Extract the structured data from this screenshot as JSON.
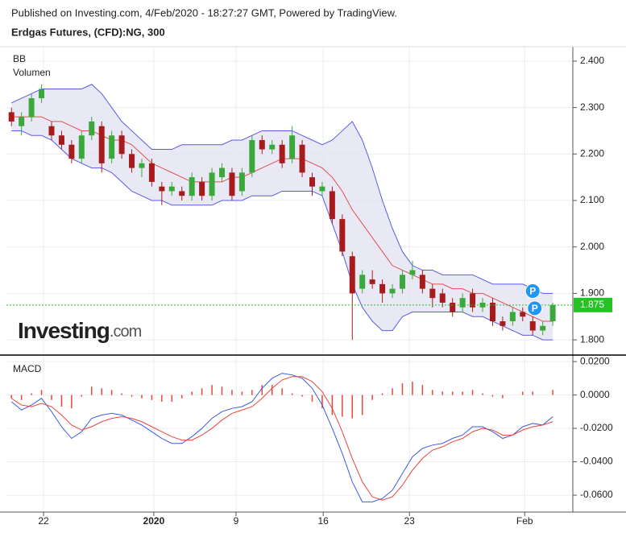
{
  "header": {
    "published": "Published on Investing.com, 4/Feb/2020 - 18:27:27 GMT, Powered by TradingView.",
    "instrument": "Erdgas Futures, (CFD):NG, 300"
  },
  "logo": {
    "brand": "Investing",
    "suffix": ".com"
  },
  "chart_data": [
    {
      "type": "candlestick",
      "title": "BB",
      "subtitle": "Volumen",
      "up_color": "#3aa83a",
      "down_color": "#a61c1c",
      "band_color": "#5a5ae6",
      "band_fill": "#e3e3f3",
      "middle_color": "#e25050",
      "ohlc": [
        [
          2.29,
          2.3,
          2.26,
          2.27
        ],
        [
          2.26,
          2.29,
          2.24,
          2.28
        ],
        [
          2.28,
          2.33,
          2.27,
          2.32
        ],
        [
          2.32,
          2.35,
          2.31,
          2.34
        ],
        [
          2.26,
          2.27,
          2.23,
          2.24
        ],
        [
          2.24,
          2.25,
          2.21,
          2.22
        ],
        [
          2.22,
          2.23,
          2.18,
          2.19
        ],
        [
          2.19,
          2.25,
          2.18,
          2.24
        ],
        [
          2.24,
          2.28,
          2.23,
          2.27
        ],
        [
          2.26,
          2.27,
          2.16,
          2.18
        ],
        [
          2.19,
          2.25,
          2.18,
          2.24
        ],
        [
          2.24,
          2.25,
          2.19,
          2.2
        ],
        [
          2.2,
          2.21,
          2.16,
          2.17
        ],
        [
          2.17,
          2.19,
          2.15,
          2.18
        ],
        [
          2.18,
          2.19,
          2.13,
          2.14
        ],
        [
          2.13,
          2.14,
          2.09,
          2.12
        ],
        [
          2.12,
          2.14,
          2.11,
          2.13
        ],
        [
          2.12,
          2.13,
          2.1,
          2.11
        ],
        [
          2.11,
          2.16,
          2.1,
          2.15
        ],
        [
          2.14,
          2.15,
          2.1,
          2.11
        ],
        [
          2.11,
          2.17,
          2.1,
          2.16
        ],
        [
          2.15,
          2.18,
          2.14,
          2.17
        ],
        [
          2.16,
          2.17,
          2.1,
          2.11
        ],
        [
          2.12,
          2.17,
          2.11,
          2.16
        ],
        [
          2.16,
          2.24,
          2.15,
          2.23
        ],
        [
          2.23,
          2.24,
          2.2,
          2.21
        ],
        [
          2.21,
          2.23,
          2.2,
          2.22
        ],
        [
          2.22,
          2.23,
          2.17,
          2.18
        ],
        [
          2.19,
          2.26,
          2.18,
          2.24
        ],
        [
          2.22,
          2.23,
          2.15,
          2.16
        ],
        [
          2.15,
          2.16,
          2.11,
          2.13
        ],
        [
          2.12,
          2.14,
          2.11,
          2.13
        ],
        [
          2.12,
          2.13,
          2.05,
          2.06
        ],
        [
          2.06,
          2.07,
          1.98,
          1.99
        ],
        [
          1.98,
          1.99,
          1.8,
          1.9
        ],
        [
          1.91,
          1.95,
          1.9,
          1.94
        ],
        [
          1.93,
          1.95,
          1.91,
          1.92
        ],
        [
          1.92,
          1.93,
          1.88,
          1.9
        ],
        [
          1.9,
          1.92,
          1.89,
          1.91
        ],
        [
          1.91,
          1.95,
          1.9,
          1.94
        ],
        [
          1.94,
          1.97,
          1.93,
          1.95
        ],
        [
          1.94,
          1.95,
          1.9,
          1.91
        ],
        [
          1.91,
          1.92,
          1.87,
          1.89
        ],
        [
          1.9,
          1.91,
          1.87,
          1.88
        ],
        [
          1.88,
          1.89,
          1.85,
          1.86
        ],
        [
          1.87,
          1.9,
          1.86,
          1.89
        ],
        [
          1.9,
          1.91,
          1.86,
          1.87
        ],
        [
          1.87,
          1.89,
          1.86,
          1.88
        ],
        [
          1.88,
          1.89,
          1.83,
          1.84
        ],
        [
          1.84,
          1.85,
          1.82,
          1.83
        ],
        [
          1.84,
          1.87,
          1.83,
          1.86
        ],
        [
          1.86,
          1.87,
          1.84,
          1.85
        ],
        [
          1.84,
          1.85,
          1.81,
          1.82
        ],
        [
          1.82,
          1.84,
          1.81,
          1.83
        ],
        [
          1.84,
          1.88,
          1.83,
          1.875
        ]
      ],
      "bands": {
        "upper": [
          2.31,
          2.32,
          2.33,
          2.34,
          2.34,
          2.34,
          2.34,
          2.34,
          2.35,
          2.33,
          2.3,
          2.27,
          2.25,
          2.23,
          2.21,
          2.21,
          2.21,
          2.22,
          2.22,
          2.22,
          2.22,
          2.22,
          2.23,
          2.23,
          2.24,
          2.25,
          2.25,
          2.25,
          2.25,
          2.24,
          2.23,
          2.22,
          2.23,
          2.25,
          2.27,
          2.23,
          2.17,
          2.1,
          2.04,
          1.99,
          1.96,
          1.95,
          1.95,
          1.94,
          1.94,
          1.94,
          1.94,
          1.93,
          1.92,
          1.92,
          1.92,
          1.92,
          1.91,
          1.9,
          1.9
        ],
        "middle": [
          2.28,
          2.28,
          2.28,
          2.28,
          2.27,
          2.27,
          2.26,
          2.25,
          2.25,
          2.24,
          2.23,
          2.23,
          2.22,
          2.2,
          2.18,
          2.17,
          2.16,
          2.15,
          2.14,
          2.14,
          2.14,
          2.14,
          2.15,
          2.15,
          2.16,
          2.17,
          2.18,
          2.19,
          2.19,
          2.19,
          2.18,
          2.17,
          2.15,
          2.12,
          2.08,
          2.05,
          2.02,
          1.99,
          1.96,
          1.95,
          1.94,
          1.93,
          1.92,
          1.92,
          1.91,
          1.91,
          1.9,
          1.9,
          1.89,
          1.88,
          1.87,
          1.86,
          1.85,
          1.84,
          1.84
        ],
        "lower": [
          2.25,
          2.25,
          2.24,
          2.24,
          2.23,
          2.21,
          2.19,
          2.18,
          2.17,
          2.17,
          2.16,
          2.14,
          2.12,
          2.11,
          2.1,
          2.1,
          2.09,
          2.09,
          2.09,
          2.09,
          2.09,
          2.1,
          2.1,
          2.1,
          2.11,
          2.11,
          2.11,
          2.12,
          2.12,
          2.12,
          2.12,
          2.11,
          2.05,
          1.99,
          1.92,
          1.87,
          1.84,
          1.82,
          1.82,
          1.85,
          1.86,
          1.86,
          1.86,
          1.86,
          1.86,
          1.86,
          1.85,
          1.85,
          1.84,
          1.83,
          1.82,
          1.81,
          1.81,
          1.8,
          1.8
        ]
      },
      "last_price": 1.875,
      "last_price_color": "#22c322",
      "markers": [
        {
          "label": "P",
          "x": 52,
          "y": 1.905
        },
        {
          "label": "P",
          "x": 52.2,
          "y": 1.868
        }
      ],
      "marker_color": "#2196f3",
      "ylim": [
        1.769,
        2.431
      ],
      "yticks": [
        {
          "value": 2.4,
          "label": "2.400"
        },
        {
          "value": 2.3,
          "label": "2.300"
        },
        {
          "value": 2.2,
          "label": "2.200"
        },
        {
          "value": 2.1,
          "label": "2.100"
        },
        {
          "value": 2.0,
          "label": "2.000"
        },
        {
          "value": 1.9,
          "label": "1.900"
        },
        {
          "value": 1.8,
          "label": "1.800"
        }
      ],
      "grid": true
    },
    {
      "type": "line",
      "title": "MACD",
      "series": [
        {
          "color": "#3b5be0",
          "values": [
            -0.004,
            -0.009,
            -0.006,
            -0.002,
            -0.01,
            -0.019,
            -0.026,
            -0.022,
            -0.014,
            -0.012,
            -0.011,
            -0.012,
            -0.015,
            -0.018,
            -0.022,
            -0.026,
            -0.029,
            -0.029,
            -0.025,
            -0.02,
            -0.014,
            -0.01,
            -0.008,
            -0.007,
            -0.004,
            0.004,
            0.01,
            0.013,
            0.012,
            0.01,
            0.004,
            -0.006,
            -0.02,
            -0.035,
            -0.052,
            -0.064,
            -0.064,
            -0.062,
            -0.057,
            -0.047,
            -0.037,
            -0.032,
            -0.03,
            -0.029,
            -0.026,
            -0.024,
            -0.019,
            -0.019,
            -0.022,
            -0.026,
            -0.024,
            -0.019,
            -0.017,
            -0.018,
            -0.013
          ]
        },
        {
          "color": "#e8453c",
          "values": [
            -0.002,
            -0.006,
            -0.007,
            -0.005,
            -0.007,
            -0.012,
            -0.018,
            -0.021,
            -0.019,
            -0.016,
            -0.014,
            -0.013,
            -0.014,
            -0.016,
            -0.019,
            -0.022,
            -0.025,
            -0.027,
            -0.027,
            -0.024,
            -0.02,
            -0.015,
            -0.011,
            -0.009,
            -0.007,
            -0.002,
            0.004,
            0.009,
            0.011,
            0.011,
            0.008,
            0.002,
            -0.008,
            -0.022,
            -0.038,
            -0.052,
            -0.061,
            -0.063,
            -0.061,
            -0.054,
            -0.045,
            -0.038,
            -0.033,
            -0.031,
            -0.028,
            -0.026,
            -0.022,
            -0.02,
            -0.021,
            -0.024,
            -0.024,
            -0.021,
            -0.019,
            -0.018,
            -0.016
          ]
        }
      ],
      "histogram": {
        "color": "#e8453c",
        "values": [
          -0.002,
          -0.003,
          0.001,
          0.003,
          -0.003,
          -0.007,
          -0.008,
          -0.001,
          0.005,
          0.004,
          0.003,
          0.001,
          -0.001,
          -0.002,
          -0.003,
          -0.004,
          -0.004,
          -0.002,
          0.002,
          0.004,
          0.006,
          0.005,
          0.003,
          0.002,
          0.003,
          0.006,
          0.006,
          0.004,
          0.001,
          -0.001,
          -0.004,
          -0.008,
          -0.012,
          -0.013,
          -0.014,
          -0.012,
          -0.003,
          0.001,
          0.004,
          0.007,
          0.008,
          0.006,
          0.003,
          0.002,
          0.002,
          0.002,
          0.003,
          0.001,
          -0.001,
          -0.002,
          0.0,
          0.002,
          0.002,
          0.0,
          0.003
        ]
      },
      "ylim": [
        -0.0701,
        0.0239
      ],
      "yticks": [
        {
          "value": 0.02,
          "label": "0.0200"
        },
        {
          "value": 0,
          "label": "0.0000"
        },
        {
          "value": -0.02,
          "label": "-0.0200"
        },
        {
          "value": -0.04,
          "label": "-0.0400"
        },
        {
          "value": -0.06,
          "label": "-0.0600"
        }
      ],
      "xlim": [
        -0.5,
        56
      ],
      "xticks": [
        {
          "value": 3.2,
          "label": "22"
        },
        {
          "value": 14.2,
          "label": "2020"
        },
        {
          "value": 22.4,
          "label": "9"
        },
        {
          "value": 31.1,
          "label": "16"
        },
        {
          "value": 39.7,
          "label": "23"
        },
        {
          "value": 51.2,
          "label": "Feb"
        }
      ],
      "grid": true
    }
  ]
}
